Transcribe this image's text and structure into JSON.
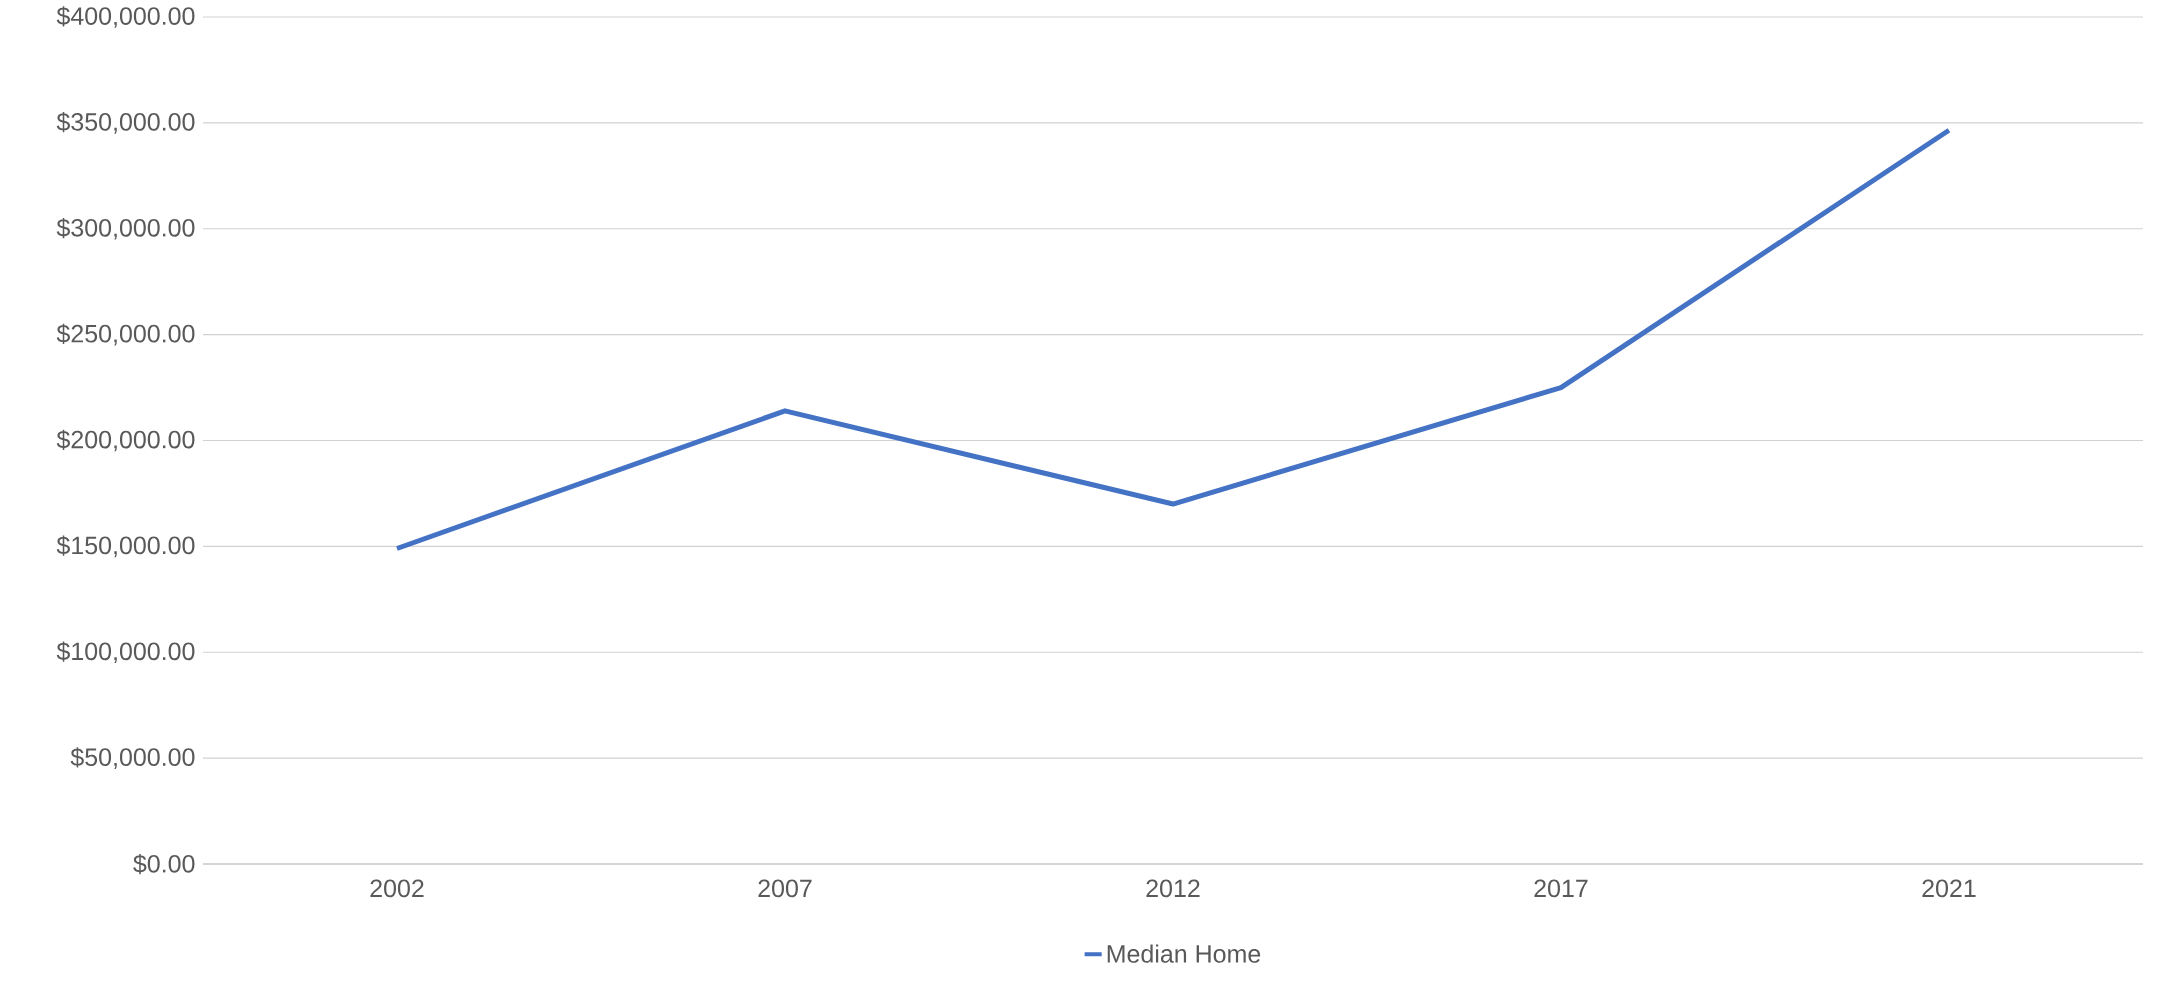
{
  "chart_data": {
    "type": "line",
    "categories": [
      "2002",
      "2007",
      "2012",
      "2017",
      "2021"
    ],
    "series": [
      {
        "name": "Median Home",
        "color": "#4472c4",
        "values": [
          149000,
          214000,
          170000,
          225000,
          346500
        ]
      }
    ],
    "ylim": [
      0,
      400000
    ],
    "yticks": [
      {
        "value": 0,
        "label": "$0.00"
      },
      {
        "value": 50000,
        "label": "$50,000.00"
      },
      {
        "value": 100000,
        "label": "$100,000.00"
      },
      {
        "value": 150000,
        "label": "$150,000.00"
      },
      {
        "value": 200000,
        "label": "$200,000.00"
      },
      {
        "value": 250000,
        "label": "$250,000.00"
      },
      {
        "value": 300000,
        "label": "$300,000.00"
      },
      {
        "value": 350000,
        "label": "$350,000.00"
      },
      {
        "value": 400000,
        "label": "$400,000.00"
      }
    ],
    "grid": "y",
    "legend": "bottom",
    "marker": "none",
    "line_style": "solid"
  }
}
